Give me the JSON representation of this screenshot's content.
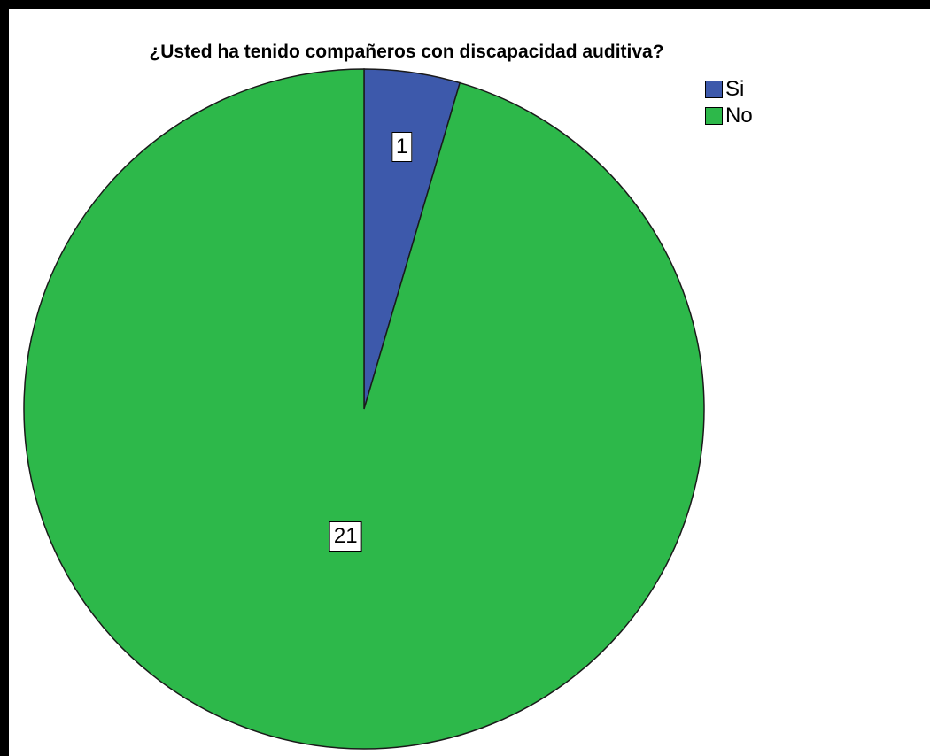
{
  "chart_data": {
    "type": "pie",
    "title": "¿Usted ha tenido compañeros con discapacidad auditiva?",
    "categories": [
      "Si",
      "No"
    ],
    "values": [
      1,
      21
    ],
    "colors": [
      "#3d59ab",
      "#2db84a"
    ],
    "data_labels": [
      "1",
      "21"
    ],
    "legend_position": "top-right",
    "start_angle": "12 o'clock",
    "direction": "clockwise"
  }
}
